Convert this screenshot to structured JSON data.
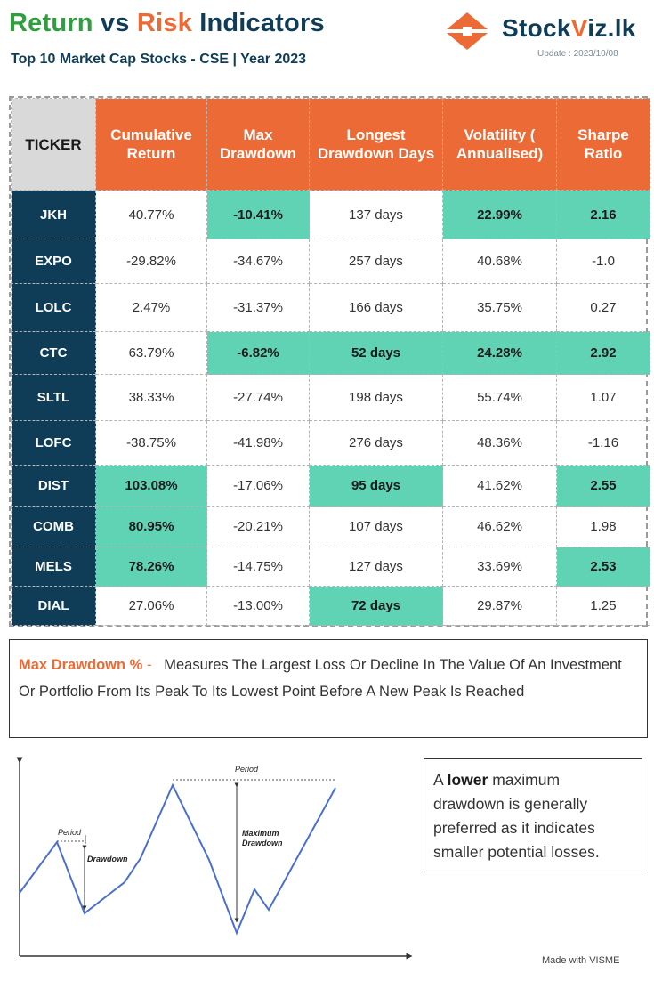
{
  "header": {
    "title_part1": "Return",
    "title_part2": "vs",
    "title_part3": "Risk",
    "title_part4": "Indicators",
    "subtitle": "Top 10 Market Cap Stocks - CSE | Year 2023"
  },
  "logo": {
    "brand_prefix": "Stock",
    "brand_v": "V",
    "brand_suffix": "iz.lk",
    "update_text": "Update : 2023/10/08",
    "icon": "stockviz-arrows-icon"
  },
  "table": {
    "headers": [
      "TICKER",
      "Cumulative Return",
      "Max Drawdown",
      "Longest Drawdown Days",
      "Volatility ( Annualised)",
      "Sharpe Ratio"
    ],
    "rows": [
      {
        "ticker": "JKH",
        "cells": [
          {
            "v": "40.77%"
          },
          {
            "v": "-10.41%",
            "hl": true
          },
          {
            "v": "137 days"
          },
          {
            "v": "22.99%",
            "hl": true
          },
          {
            "v": "2.16",
            "hl": true
          }
        ]
      },
      {
        "ticker": "EXPO",
        "cells": [
          {
            "v": "-29.82%"
          },
          {
            "v": "-34.67%"
          },
          {
            "v": "257 days"
          },
          {
            "v": "40.68%"
          },
          {
            "v": "-1.0"
          }
        ]
      },
      {
        "ticker": "LOLC",
        "cells": [
          {
            "v": "2.47%"
          },
          {
            "v": "-31.37%"
          },
          {
            "v": "166 days"
          },
          {
            "v": "35.75%"
          },
          {
            "v": "0.27"
          }
        ]
      },
      {
        "ticker": "CTC",
        "cells": [
          {
            "v": "63.79%"
          },
          {
            "v": "-6.82%",
            "hl": true
          },
          {
            "v": "52 days",
            "hl": true
          },
          {
            "v": "24.28%",
            "hl": true
          },
          {
            "v": "2.92",
            "hl": true
          }
        ]
      },
      {
        "ticker": "SLTL",
        "cells": [
          {
            "v": "38.33%"
          },
          {
            "v": "-27.74%"
          },
          {
            "v": "198 days"
          },
          {
            "v": "55.74%"
          },
          {
            "v": "1.07"
          }
        ]
      },
      {
        "ticker": "LOFC",
        "cells": [
          {
            "v": "-38.75%"
          },
          {
            "v": "-41.98%"
          },
          {
            "v": "276 days"
          },
          {
            "v": "48.36%"
          },
          {
            "v": "-1.16"
          }
        ]
      },
      {
        "ticker": "DIST",
        "cells": [
          {
            "v": "103.08%",
            "hl": true
          },
          {
            "v": "-17.06%"
          },
          {
            "v": "95 days",
            "hl": true
          },
          {
            "v": "41.62%"
          },
          {
            "v": "2.55",
            "hl": true
          }
        ]
      },
      {
        "ticker": "COMB",
        "cells": [
          {
            "v": "80.95%",
            "hl": true
          },
          {
            "v": "-20.21%"
          },
          {
            "v": "107 days"
          },
          {
            "v": "46.62%"
          },
          {
            "v": "1.98"
          }
        ]
      },
      {
        "ticker": "MELS",
        "cells": [
          {
            "v": "78.26%",
            "hl": true
          },
          {
            "v": "-14.75%"
          },
          {
            "v": "127 days"
          },
          {
            "v": "33.69%"
          },
          {
            "v": "2.53",
            "hl": true
          }
        ]
      },
      {
        "ticker": "DIAL",
        "cells": [
          {
            "v": "27.06%"
          },
          {
            "v": "-13.00%"
          },
          {
            "v": "72 days",
            "hl": true
          },
          {
            "v": "29.87%"
          },
          {
            "v": "1.25"
          }
        ]
      }
    ]
  },
  "definition": {
    "term": "Max Drawdown %",
    "separator": " -",
    "text": "Measures The Largest Loss Or Decline In The Value Of An Investment Or Portfolio From Its Peak To Its Lowest Point Before A New Peak Is Reached"
  },
  "diagram": {
    "label_period_1": "Period",
    "label_drawdown": "Drawdown",
    "label_period_2": "Period",
    "label_max_drawdown_line1": "Maximum",
    "label_max_drawdown_line2": "Drawdown"
  },
  "note": {
    "prefix": "A",
    "emphasis": "lower",
    "suffix": "maximum drawdown is generally preferred as it indicates smaller potential losses."
  },
  "footer": {
    "credit": "Made with VISME"
  },
  "colors": {
    "orange": "#ec6a35",
    "navy": "#0f3d57",
    "green_title": "#2e9e3f",
    "highlight": "#5fd3b4",
    "ticker_header_bg": "#d9d9d9",
    "line_blue": "#4a6fd1"
  }
}
